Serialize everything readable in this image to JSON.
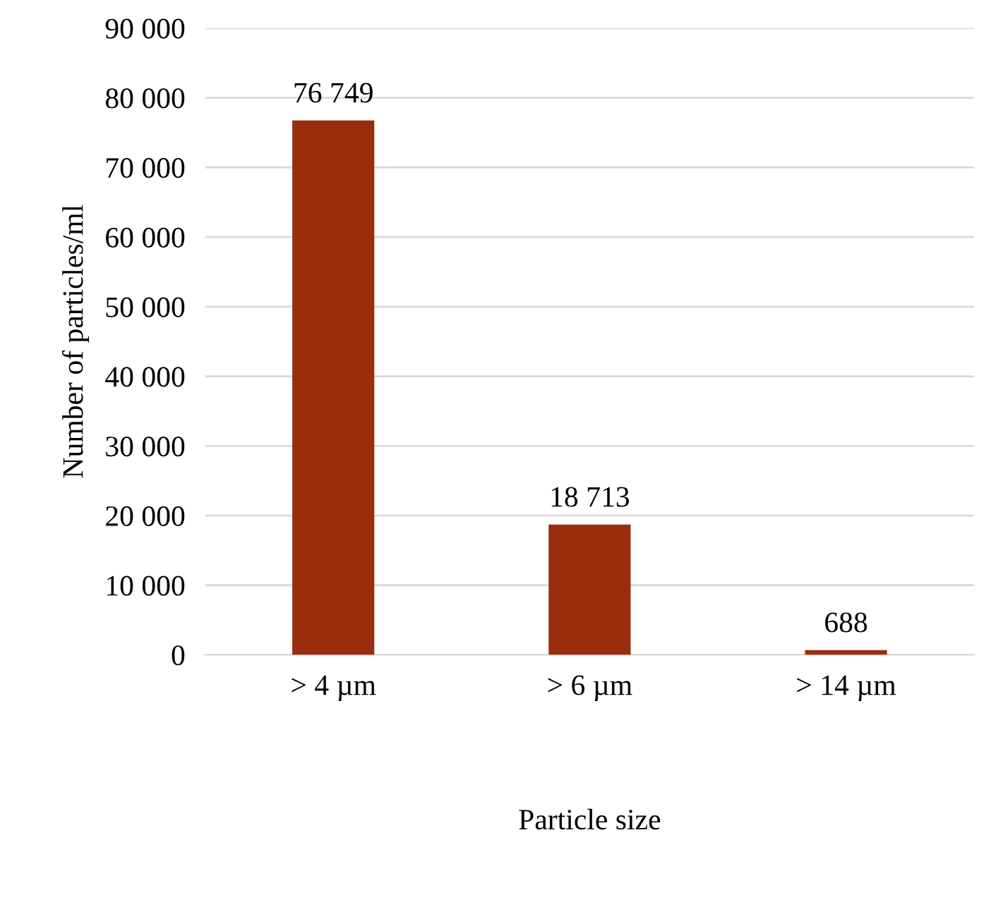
{
  "chart_data": {
    "type": "bar",
    "xlabel": "Particle size",
    "ylabel": "Number of particles/ml",
    "categories": [
      "> 4 µm",
      "> 6 µm",
      "> 14 µm"
    ],
    "values": [
      76749,
      18713,
      688
    ],
    "value_labels": [
      "76 749",
      "18 713",
      "688"
    ],
    "color": "#9a2d0e",
    "ylim": [
      0,
      90000
    ],
    "yticks": [
      0,
      {
        "value": 10000,
        "label": "10 000"
      },
      {
        "value": 20000,
        "label": "20 000"
      },
      {
        "value": 30000,
        "label": "30 000"
      },
      {
        "value": 40000,
        "label": "40 000"
      },
      {
        "value": 50000,
        "label": "50 000"
      },
      {
        "value": 60000,
        "label": "60 000"
      },
      {
        "value": 70000,
        "label": "70 000"
      },
      {
        "value": 80000,
        "label": "80 000"
      },
      {
        "value": 90000,
        "label": "90 000"
      }
    ],
    "grid": "y",
    "legend": false
  }
}
